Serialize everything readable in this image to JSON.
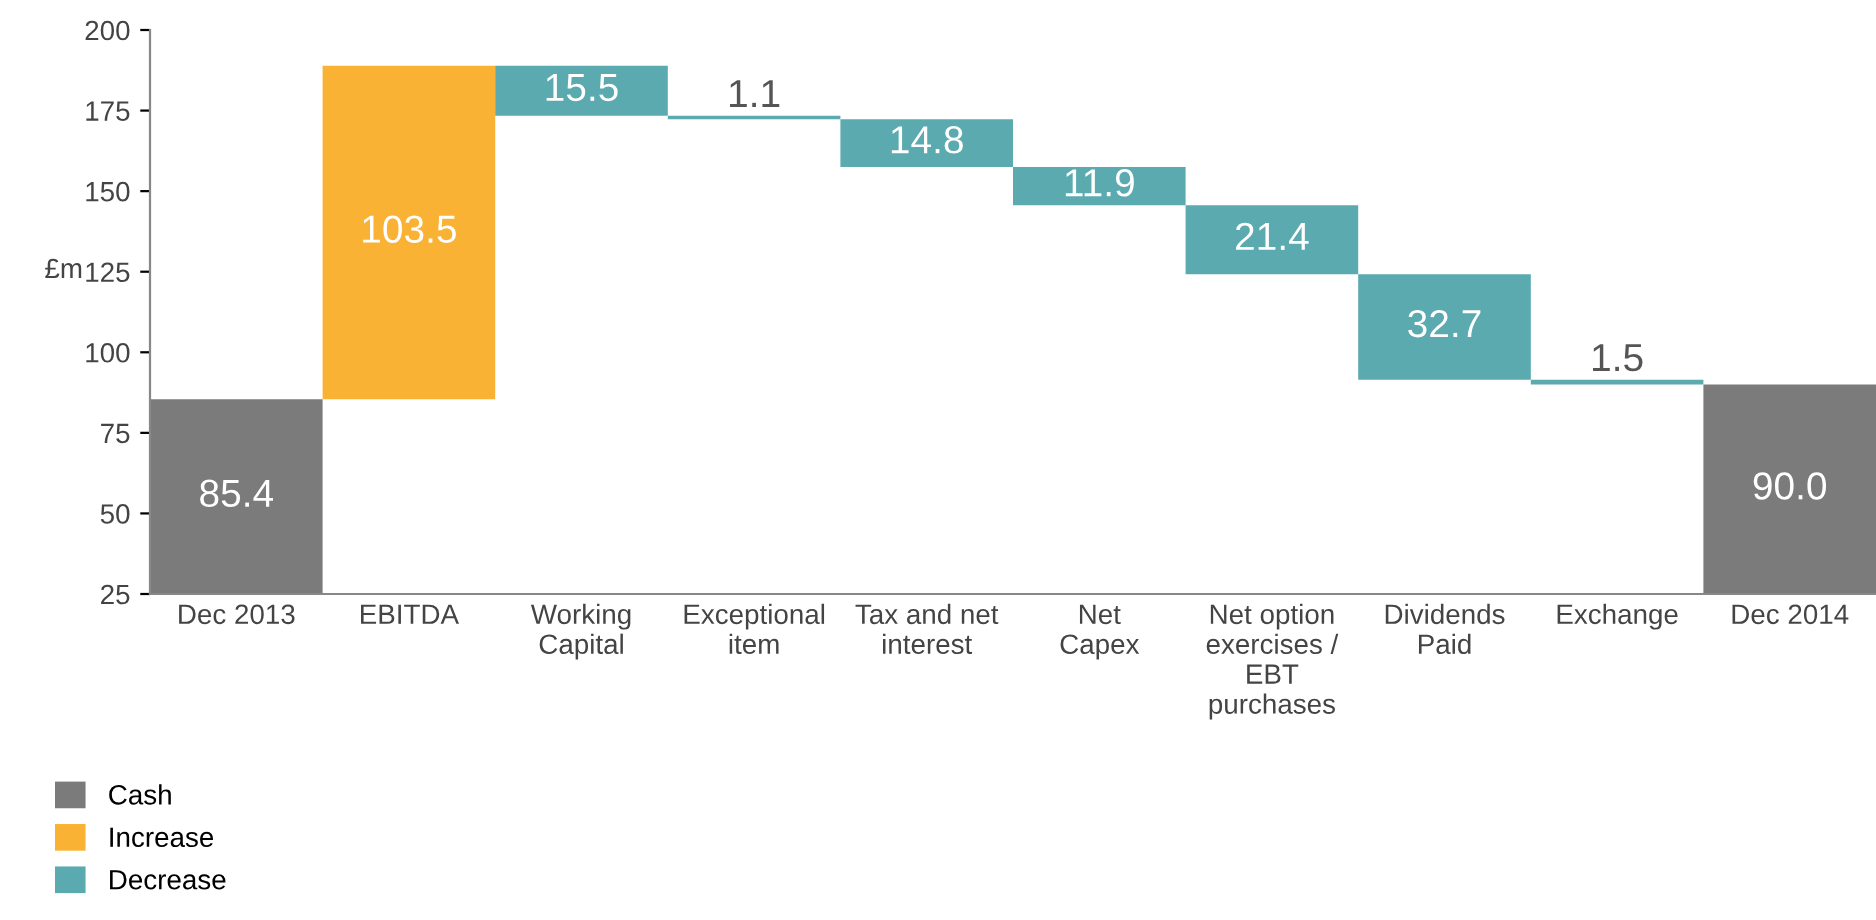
{
  "chart_data": {
    "type": "bar",
    "categories": [
      "Dec 2013",
      "EBITDA",
      "Working\nCapital",
      "Exceptional\nitem",
      "Tax and net\ninterest",
      "Net\nCapex",
      "Net option\nexercises /\nEBT\npurchases",
      "Dividends\nPaid",
      "Exchange",
      "Dec 2014"
    ],
    "series": [
      {
        "name": "Cash",
        "color": "#7b7b7b",
        "values": [
          85.4,
          null,
          null,
          null,
          null,
          null,
          null,
          null,
          null,
          90.0
        ],
        "value_labels": [
          "85.4",
          null,
          null,
          null,
          null,
          null,
          null,
          null,
          null,
          "90.0"
        ]
      },
      {
        "name": "Increase",
        "color": "#f9b233",
        "base": [
          null,
          85.4,
          null,
          null,
          null,
          null,
          null,
          null,
          null,
          null
        ],
        "values": [
          null,
          103.5,
          null,
          null,
          null,
          null,
          null,
          null,
          null,
          null
        ],
        "value_labels": [
          null,
          "103.5",
          null,
          null,
          null,
          null,
          null,
          null,
          null,
          null
        ]
      },
      {
        "name": "Decrease",
        "color": "#5aaab0",
        "base": [
          null,
          null,
          173.4,
          172.3,
          157.5,
          145.6,
          124.2,
          91.5,
          90.0,
          null
        ],
        "values": [
          null,
          null,
          15.5,
          1.1,
          14.8,
          11.9,
          21.4,
          32.7,
          1.5,
          null
        ],
        "value_labels": [
          null,
          null,
          "15.5",
          "1.1",
          "14.8",
          "11.9",
          "21.4",
          "32.7",
          "1.5",
          null
        ]
      }
    ],
    "ylabel": "£m",
    "ylim": [
      25,
      200
    ],
    "yticks": [
      25,
      50,
      75,
      100,
      125,
      150,
      175,
      200
    ],
    "grid": false,
    "legend": "bottom left"
  }
}
